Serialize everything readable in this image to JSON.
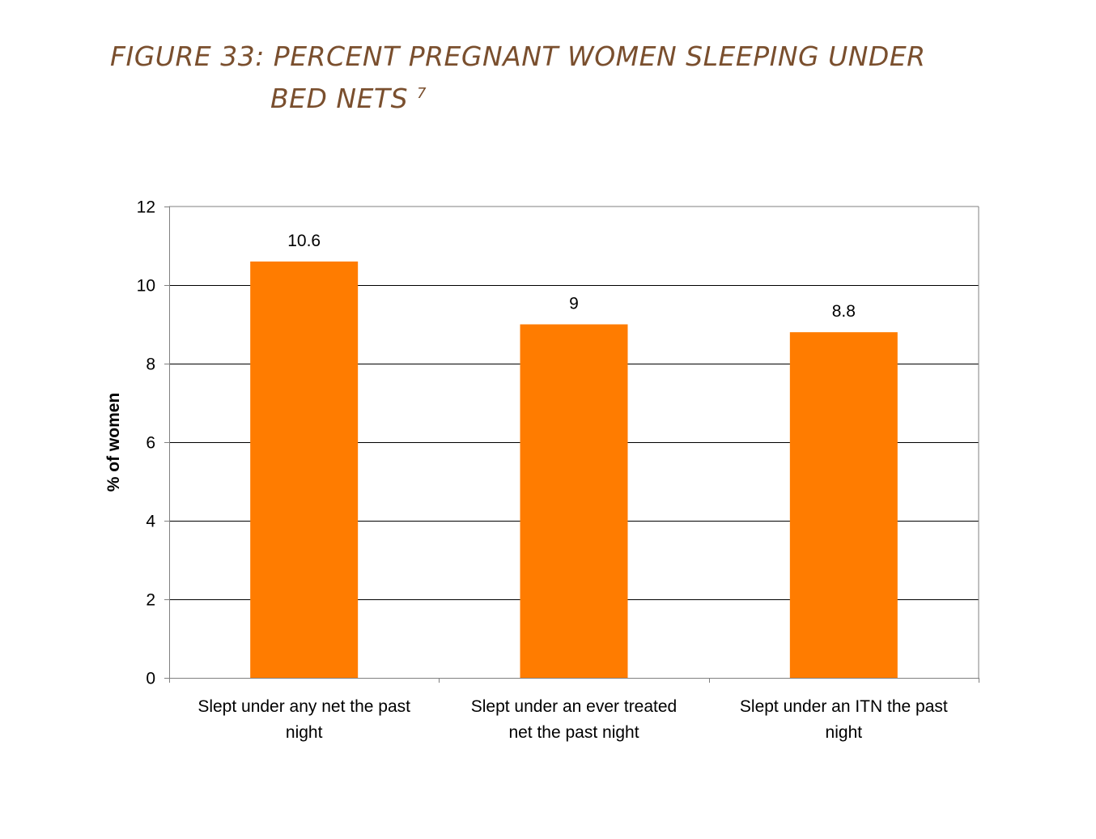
{
  "title": {
    "line1": "FIGURE 33: PERCENT PREGNANT WOMEN SLEEPING UNDER",
    "line2": "BED NETS",
    "footnote": "7"
  },
  "chart_data": {
    "type": "bar",
    "categories": [
      [
        "Slept under any net the past",
        "night"
      ],
      [
        "Slept under an ever treated",
        "net the past night"
      ],
      [
        "Slept under an ITN the past",
        "night"
      ]
    ],
    "values": [
      10.6,
      9,
      8.8
    ],
    "data_labels": [
      "10.6",
      "9",
      "8.8"
    ],
    "ylabel": "% of women",
    "xlabel": "",
    "ylim": [
      0,
      12
    ],
    "yticks": [
      0,
      2,
      4,
      6,
      8,
      10,
      12
    ],
    "grid": true,
    "legend": "none",
    "colors": {
      "bar": "#ff7c00",
      "grid": "#000000",
      "axis": "#808080"
    }
  }
}
